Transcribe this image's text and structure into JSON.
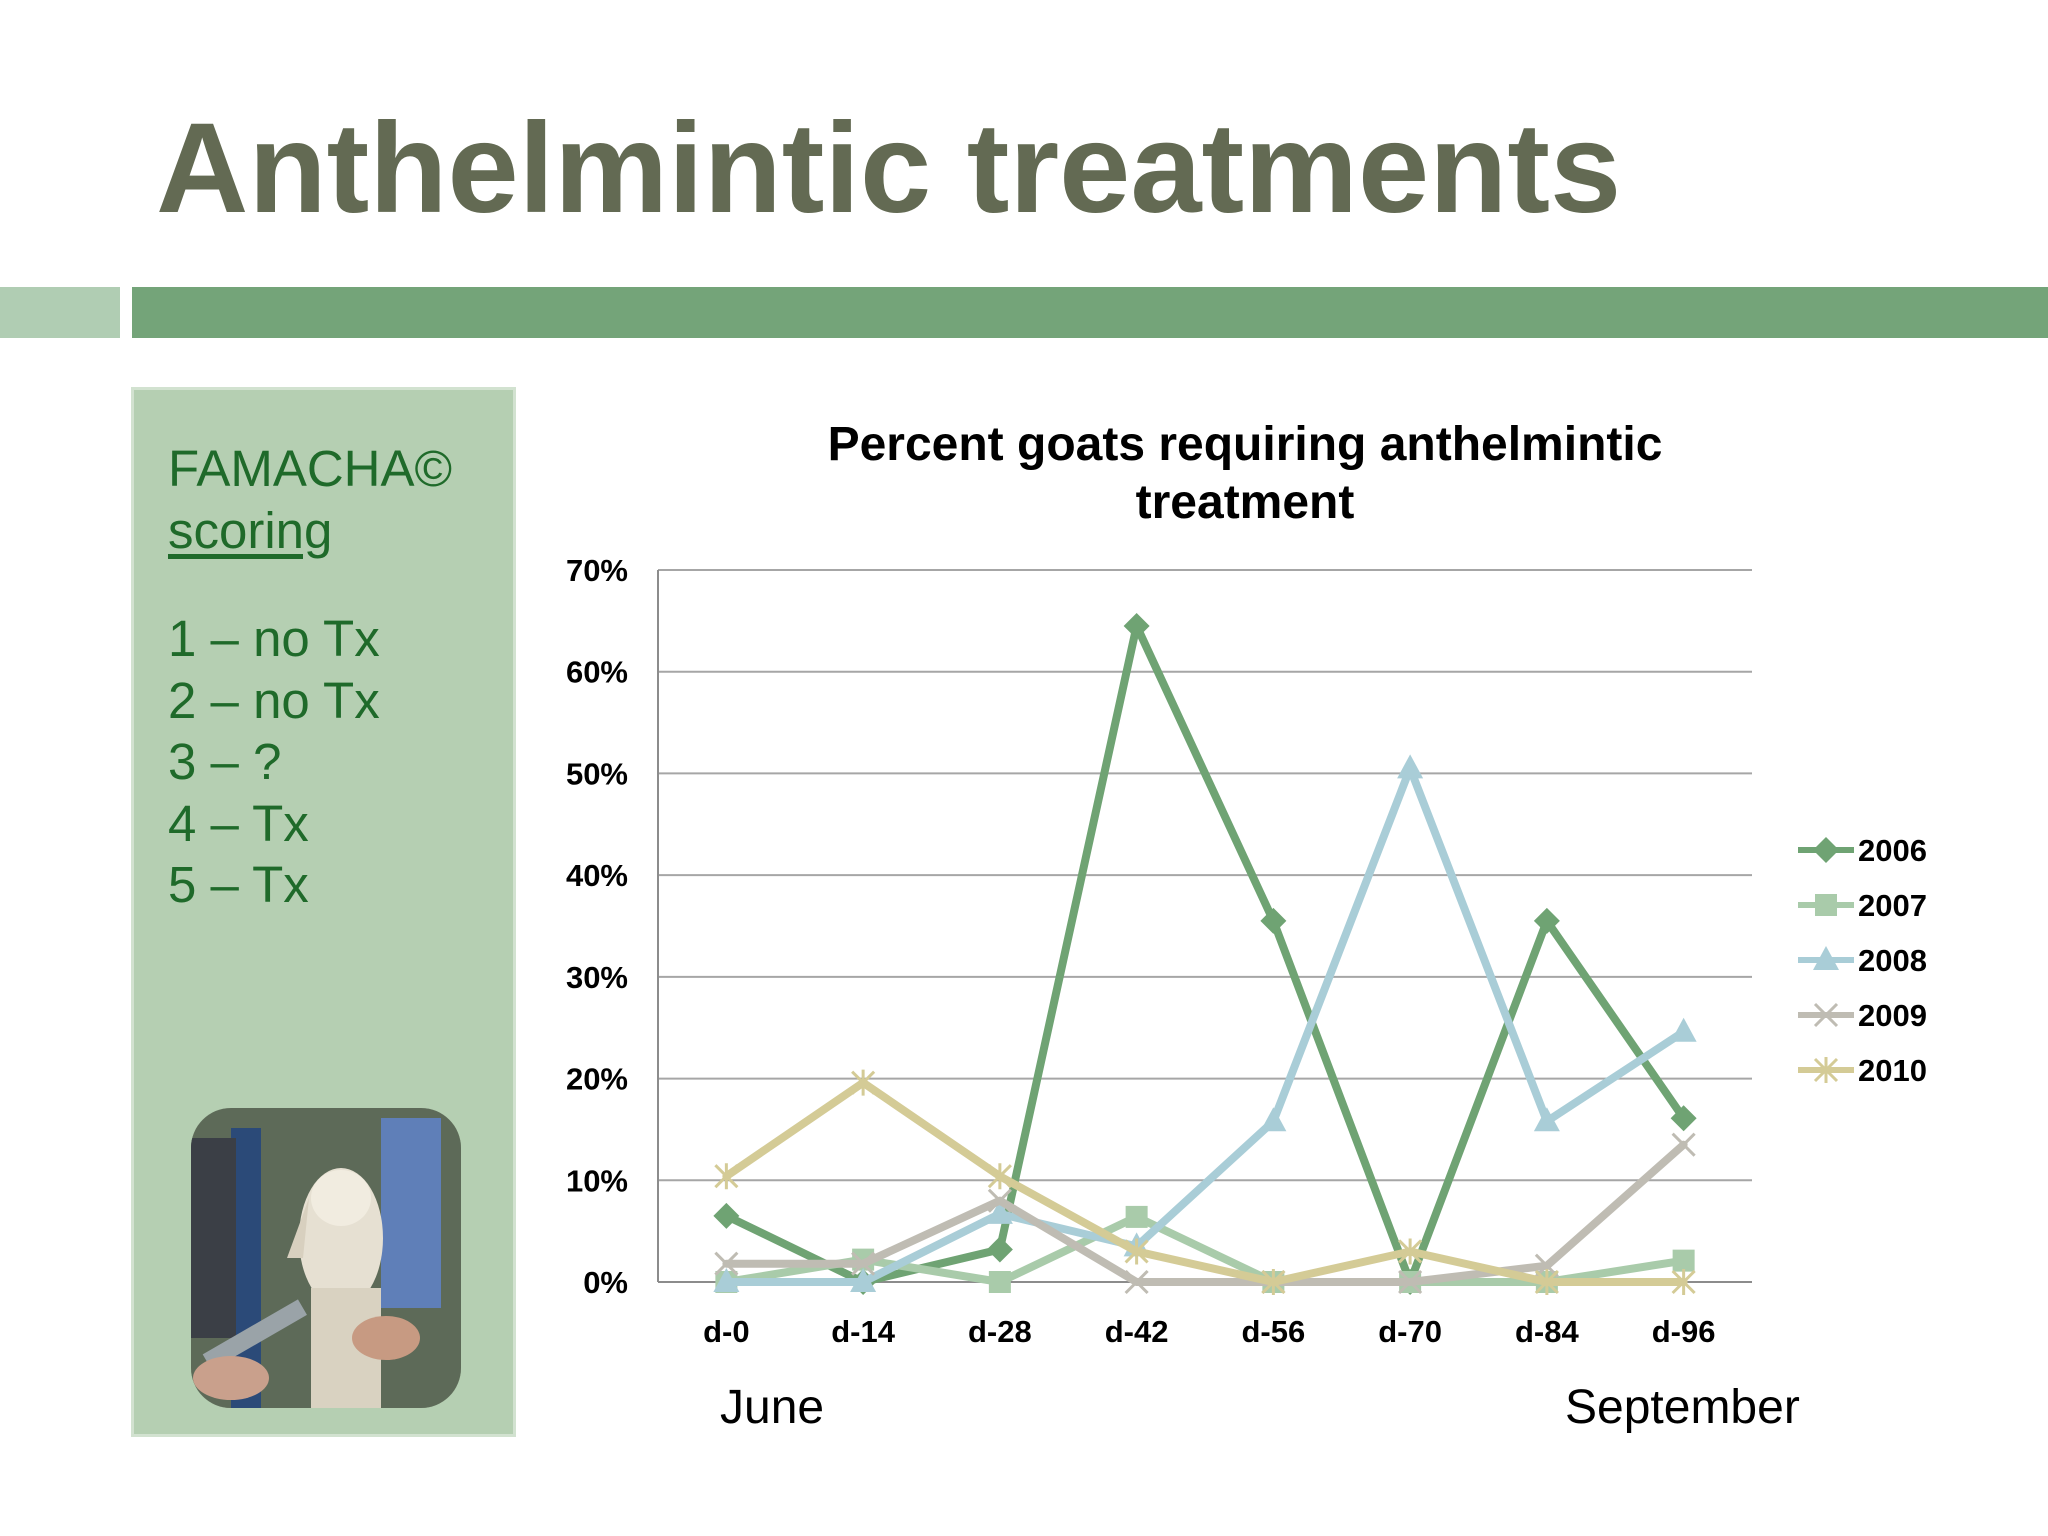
{
  "slide": {
    "title": "Anthelmintic treatments"
  },
  "side_panel": {
    "heading_line1": "FAMACHA©",
    "heading_line2": "scoring",
    "scores": [
      "1 – no Tx",
      "2 – no Tx",
      "3 – ?",
      "4 – Tx",
      "5 – Tx"
    ]
  },
  "months": {
    "start": "June",
    "end": "September"
  },
  "chart_data": {
    "type": "line",
    "title": "Percent goats requiring anthelmintic treatment",
    "title_lines": [
      "Percent goats requiring anthelmintic",
      "treatment"
    ],
    "categories": [
      "d-0",
      "d-14",
      "d-28",
      "d-42",
      "d-56",
      "d-70",
      "d-84",
      "d-96"
    ],
    "ylim": [
      0,
      70
    ],
    "yticks": [
      "0%",
      "10%",
      "20%",
      "30%",
      "40%",
      "50%",
      "60%",
      "70%"
    ],
    "grid": true,
    "legend": "right",
    "series": [
      {
        "name": "2006",
        "color": "#6fa373",
        "marker": "diamond",
        "values": [
          6.5,
          0,
          3.2,
          64.5,
          35.5,
          0,
          35.5,
          16.1
        ]
      },
      {
        "name": "2007",
        "color": "#a9cbaa",
        "marker": "square",
        "values": [
          0,
          2.2,
          0,
          6.4,
          0,
          0,
          0,
          2.1
        ]
      },
      {
        "name": "2008",
        "color": "#a9cdd7",
        "marker": "triangle",
        "values": [
          0,
          0,
          6.7,
          3.5,
          15.8,
          50.5,
          15.8,
          24.6
        ]
      },
      {
        "name": "2009",
        "color": "#bfbcb3",
        "marker": "x",
        "values": [
          1.8,
          1.8,
          8.0,
          0,
          0,
          0,
          1.6,
          13.5
        ]
      },
      {
        "name": "2010",
        "color": "#d4cb96",
        "marker": "star",
        "values": [
          10.4,
          19.6,
          10.4,
          3.0,
          0,
          3.0,
          0,
          0
        ]
      }
    ]
  }
}
